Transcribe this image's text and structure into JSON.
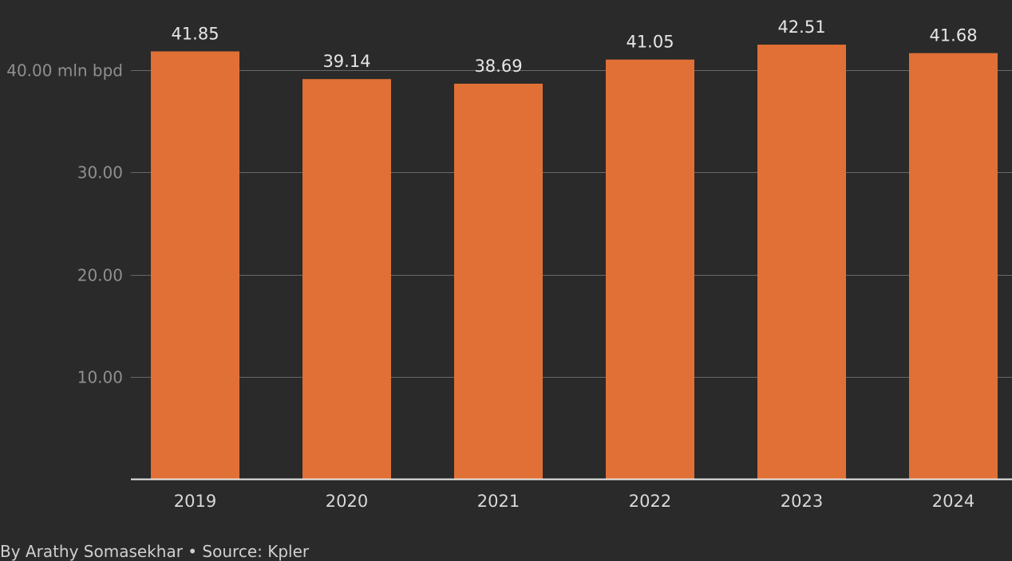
{
  "chart_data": {
    "type": "bar",
    "categories": [
      "2019",
      "2020",
      "2021",
      "2022",
      "2023",
      "2024"
    ],
    "values": [
      41.85,
      39.14,
      38.69,
      41.05,
      42.51,
      41.68
    ],
    "value_labels": [
      "41.85",
      "39.14",
      "38.69",
      "41.05",
      "42.51",
      "41.68"
    ],
    "y_ticks": [
      10,
      20,
      30,
      40
    ],
    "y_tick_labels": [
      "10.00",
      "20.00",
      "30.00",
      "40.00 mln bpd"
    ],
    "ylim": [
      0,
      45
    ],
    "grid": true,
    "bar_color": "#e07035",
    "credit": "By Arathy Somasekhar • Source: Kpler"
  }
}
